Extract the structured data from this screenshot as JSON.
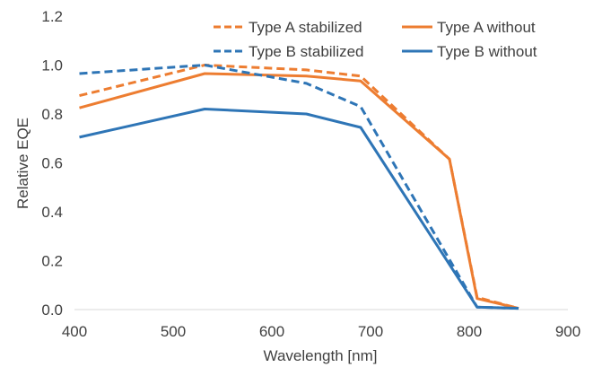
{
  "chart_data": {
    "type": "line",
    "title": "",
    "xlabel": "Wavelength [nm]",
    "ylabel": "Relative EQE",
    "xlim": [
      400,
      900
    ],
    "ylim": [
      0,
      1.2
    ],
    "x_ticks": [
      400,
      500,
      600,
      700,
      800,
      900
    ],
    "y_ticks": [
      "0.0",
      "0.2",
      "0.4",
      "0.6",
      "0.8",
      "1.0",
      "1.2"
    ],
    "grid": false,
    "legend_position": "top-right",
    "series": [
      {
        "name": "Type A stabilized",
        "color": "#ED7D31",
        "dash": "dashed",
        "x": [
          405,
          532,
          635,
          690,
          780,
          808,
          850
        ],
        "y": [
          0.875,
          1.0,
          0.98,
          0.955,
          0.615,
          0.05,
          0.005
        ]
      },
      {
        "name": "Type A without",
        "color": "#ED7D31",
        "dash": "solid",
        "x": [
          405,
          532,
          635,
          690,
          780,
          808,
          850
        ],
        "y": [
          0.825,
          0.965,
          0.955,
          0.935,
          0.615,
          0.045,
          0.005
        ]
      },
      {
        "name": "Type B stabilized",
        "color": "#2E75B6",
        "dash": "dashed",
        "x": [
          405,
          532,
          635,
          690,
          808,
          850
        ],
        "y": [
          0.965,
          1.0,
          0.925,
          0.83,
          0.01,
          0.005
        ]
      },
      {
        "name": "Type B without",
        "color": "#2E75B6",
        "dash": "solid",
        "x": [
          405,
          532,
          635,
          690,
          808,
          850
        ],
        "y": [
          0.705,
          0.82,
          0.8,
          0.745,
          0.01,
          0.005
        ]
      }
    ]
  }
}
